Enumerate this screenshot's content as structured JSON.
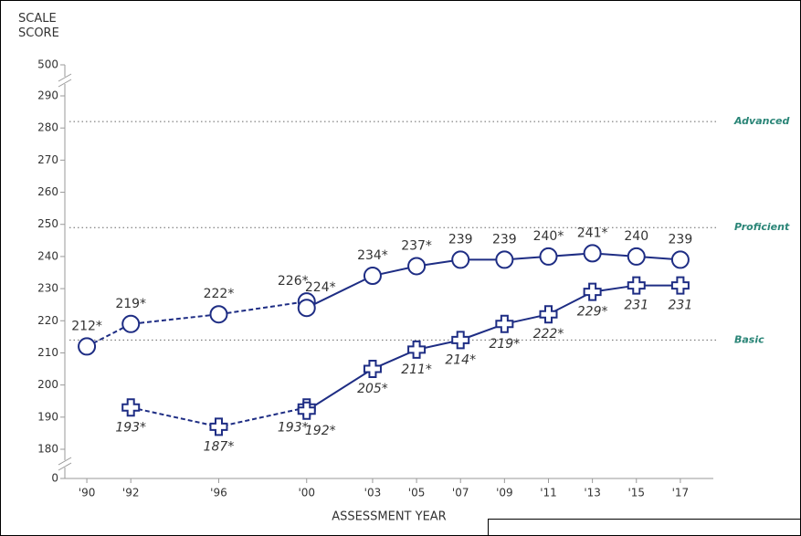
{
  "chart_data": {
    "type": "line",
    "y_label": "SCALE SCORE",
    "x_label": "ASSESSMENT YEAR",
    "xlim": [
      1989,
      2018.5
    ],
    "xticks": [
      {
        "value": 1990,
        "label": "'90"
      },
      {
        "value": 1992,
        "label": "'92"
      },
      {
        "value": 1996,
        "label": "'96"
      },
      {
        "value": 2000,
        "label": "'00"
      },
      {
        "value": 2003,
        "label": "'03"
      },
      {
        "value": 2005,
        "label": "'05"
      },
      {
        "value": 2007,
        "label": "'07"
      },
      {
        "value": 2009,
        "label": "'09"
      },
      {
        "value": 2011,
        "label": "'11"
      },
      {
        "value": 2013,
        "label": "'13"
      },
      {
        "value": 2015,
        "label": "'15"
      },
      {
        "value": 2017,
        "label": "'17"
      }
    ],
    "ylim": [
      0,
      500
    ],
    "yticks": [
      0,
      180,
      190,
      200,
      210,
      220,
      230,
      240,
      250,
      260,
      270,
      280,
      290,
      500
    ],
    "axis_break": true,
    "reference_lines": [
      {
        "label": "Advanced",
        "value": 282,
        "color": "#2a8577"
      },
      {
        "label": "Proficient",
        "value": 249,
        "color": "#2a8577"
      },
      {
        "label": "Basic",
        "value": 214,
        "color": "#2a8577"
      }
    ],
    "series": [
      {
        "color": "#1e2d84",
        "marker": "circle",
        "linestyle": "dashed",
        "label_position": "above",
        "x": [
          1990,
          1992,
          1996,
          2000
        ],
        "values": [
          212,
          219,
          222,
          226
        ],
        "value_labels": [
          "212*",
          "219*",
          "222*",
          "226*"
        ]
      },
      {
        "color": "#1e2d84",
        "marker": "circle",
        "linestyle": "solid",
        "label_position": "above",
        "x": [
          2000,
          2003,
          2005,
          2007,
          2009,
          2011,
          2013,
          2015,
          2017
        ],
        "values": [
          224,
          234,
          237,
          239,
          239,
          240,
          241,
          240,
          239
        ],
        "value_labels": [
          "224*",
          "234*",
          "237*",
          "239",
          "239",
          "240*",
          "241*",
          "240",
          "239"
        ]
      },
      {
        "color": "#1e2d84",
        "marker": "plus",
        "linestyle": "dashed",
        "label_position": "below",
        "x": [
          1992,
          1996,
          2000
        ],
        "values": [
          193,
          187,
          193
        ],
        "value_labels": [
          "193*",
          "187*",
          "193*"
        ]
      },
      {
        "color": "#1e2d84",
        "marker": "plus",
        "linestyle": "solid",
        "label_position": "below",
        "x": [
          2000,
          2003,
          2005,
          2007,
          2009,
          2011,
          2013,
          2015,
          2017
        ],
        "values": [
          192,
          205,
          211,
          214,
          219,
          222,
          229,
          231,
          231
        ],
        "value_labels": [
          "192*",
          "205*",
          "211*",
          "214*",
          "219*",
          "222*",
          "229*",
          "231",
          "231"
        ]
      }
    ]
  }
}
